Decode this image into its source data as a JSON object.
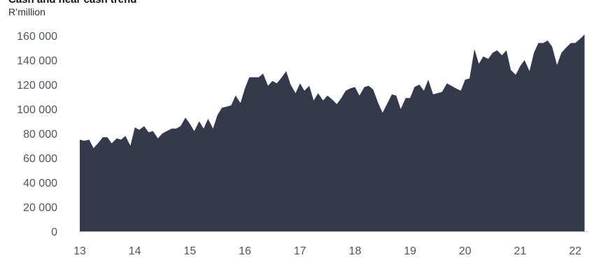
{
  "chart_data": {
    "type": "area",
    "title": "Cash and near cash trend",
    "subtitle": "R’million",
    "xlabel": "",
    "ylabel": "",
    "x_tick_labels": [
      "13",
      "14",
      "15",
      "16",
      "17",
      "18",
      "19",
      "20",
      "21",
      "22"
    ],
    "y_ticks": [
      0,
      20000,
      40000,
      60000,
      80000,
      100000,
      120000,
      140000,
      160000
    ],
    "y_tick_labels": [
      "0",
      "20 000",
      "40 000",
      "60 000",
      "80 000",
      "100 000",
      "120 000",
      "140 000",
      "160 000"
    ],
    "xlim": [
      2013,
      2022
    ],
    "ylim": [
      0,
      160000
    ],
    "grid": false,
    "legend": "none",
    "colors": {
      "area": "#343a4b",
      "axis": "#c8cbd0",
      "tick_text": "#4f5560",
      "title": "#0f1114"
    },
    "series": [
      {
        "x": [
          2013.0,
          2013.08,
          2013.17,
          2013.25,
          2013.33,
          2013.42,
          2013.5,
          2013.58,
          2013.67,
          2013.75,
          2013.83,
          2013.92,
          2014.0,
          2014.08,
          2014.17,
          2014.25,
          2014.33,
          2014.42,
          2014.5,
          2014.58,
          2014.67,
          2014.75,
          2014.83,
          2014.92,
          2015.0,
          2015.08,
          2015.17,
          2015.25,
          2015.33,
          2015.42,
          2015.5,
          2015.58,
          2015.67,
          2015.75,
          2015.83,
          2015.92,
          2016.0,
          2016.08,
          2016.17,
          2016.25,
          2016.33,
          2016.42,
          2016.5,
          2016.58,
          2016.67,
          2016.75,
          2016.83,
          2016.92,
          2017.0,
          2017.08,
          2017.17,
          2017.25,
          2017.33,
          2017.42,
          2017.5,
          2017.58,
          2017.67,
          2017.75,
          2017.83,
          2017.92,
          2018.0,
          2018.08,
          2018.17,
          2018.25,
          2018.33,
          2018.42,
          2018.5,
          2018.58,
          2018.67,
          2018.75,
          2018.83,
          2018.92,
          2019.0,
          2019.08,
          2019.17,
          2019.25,
          2019.33,
          2019.42,
          2019.5,
          2019.58,
          2019.67,
          2019.75,
          2019.83,
          2019.92,
          2020.0,
          2020.08,
          2020.17,
          2020.25,
          2020.33,
          2020.42,
          2020.5,
          2020.58,
          2020.67,
          2020.75,
          2020.83,
          2020.92,
          2021.0,
          2021.08,
          2021.17,
          2021.25,
          2021.33,
          2021.42,
          2021.5,
          2021.58,
          2021.67,
          2021.75,
          2021.83,
          2021.92,
          2022.0,
          2022.08,
          2022.17
        ],
        "values": [
          75000,
          74000,
          75000,
          68000,
          72000,
          77000,
          77000,
          72000,
          76000,
          75000,
          78000,
          70000,
          85000,
          83000,
          86000,
          81000,
          82000,
          76000,
          80000,
          82000,
          84000,
          84000,
          86000,
          93000,
          88000,
          82000,
          90000,
          84000,
          92000,
          84000,
          95000,
          101000,
          102000,
          103000,
          111000,
          105000,
          117000,
          126000,
          126000,
          126000,
          129000,
          119000,
          123000,
          121000,
          126000,
          131000,
          120000,
          113000,
          121000,
          115000,
          119000,
          107000,
          113000,
          107000,
          111000,
          108000,
          104000,
          109000,
          115000,
          117000,
          118000,
          111000,
          118000,
          119000,
          116000,
          105000,
          97000,
          104000,
          112000,
          111000,
          100000,
          109000,
          109000,
          118000,
          120000,
          115000,
          124000,
          112000,
          113000,
          114000,
          121000,
          119000,
          117000,
          115000,
          124000,
          125000,
          149000,
          137000,
          143000,
          141000,
          146000,
          148000,
          144000,
          148000,
          132000,
          128000,
          135000,
          140000,
          131000,
          146000,
          154000,
          154000,
          156000,
          151000,
          136000,
          146000,
          150000,
          154000,
          154000,
          157000,
          161000
        ]
      }
    ]
  }
}
